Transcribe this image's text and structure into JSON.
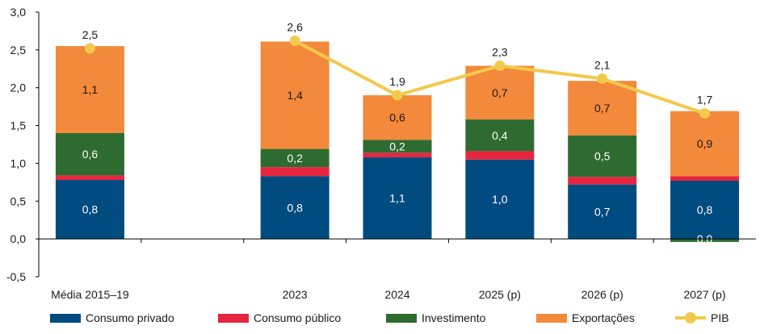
{
  "chart_data": {
    "type": "bar",
    "stacked": true,
    "categories": [
      "Média 2015–19",
      "",
      "2023",
      "2024",
      "2025 (p)",
      "2026 (p)",
      "2027 (p)"
    ],
    "ylim": [
      -0.5,
      3.0
    ],
    "yticks": [
      "3,0",
      "2,5",
      "2,0",
      "1,5",
      "1,0",
      "0,5",
      "0,0",
      "-0,5"
    ],
    "ytick_values": [
      3.0,
      2.5,
      2.0,
      1.5,
      1.0,
      0.5,
      0.0,
      -0.5
    ],
    "series": [
      {
        "name": "Consumo privado",
        "color": "#004b7f",
        "values": [
          0.78,
          null,
          0.83,
          1.08,
          1.05,
          0.72,
          0.77
        ],
        "labels": [
          "0,8",
          "",
          "0,8",
          "1,1",
          "1,0",
          "0,7",
          "0,8"
        ]
      },
      {
        "name": "Consumo público",
        "color": "#e8253f",
        "values": [
          0.06,
          null,
          0.12,
          0.06,
          0.11,
          0.1,
          0.06
        ],
        "labels": [
          "",
          "",
          "",
          "",
          "",
          "",
          ""
        ]
      },
      {
        "name": "Investimento",
        "color": "#2e6b30",
        "values": [
          0.56,
          null,
          0.24,
          0.17,
          0.42,
          0.55,
          -0.04
        ],
        "labels": [
          "0,6",
          "",
          "0,2",
          "0,2",
          "0,4",
          "0,5",
          "0,0"
        ]
      },
      {
        "name": "Exportações",
        "color": "#f3893a",
        "values": [
          1.15,
          null,
          1.42,
          0.59,
          0.71,
          0.72,
          0.86
        ],
        "labels": [
          "1,1",
          "",
          "1,4",
          "0,6",
          "0,7",
          "0,7",
          "0,9"
        ]
      }
    ],
    "line": {
      "name": "PIB",
      "color": "#f2c94c",
      "values": [
        2.52,
        null,
        2.62,
        1.9,
        2.29,
        2.12,
        1.66
      ],
      "labels": [
        "2,5",
        "",
        "2,6",
        "1,9",
        "2,3",
        "2,1",
        "1,7"
      ]
    },
    "legend_position": "bottom",
    "grid": false
  }
}
